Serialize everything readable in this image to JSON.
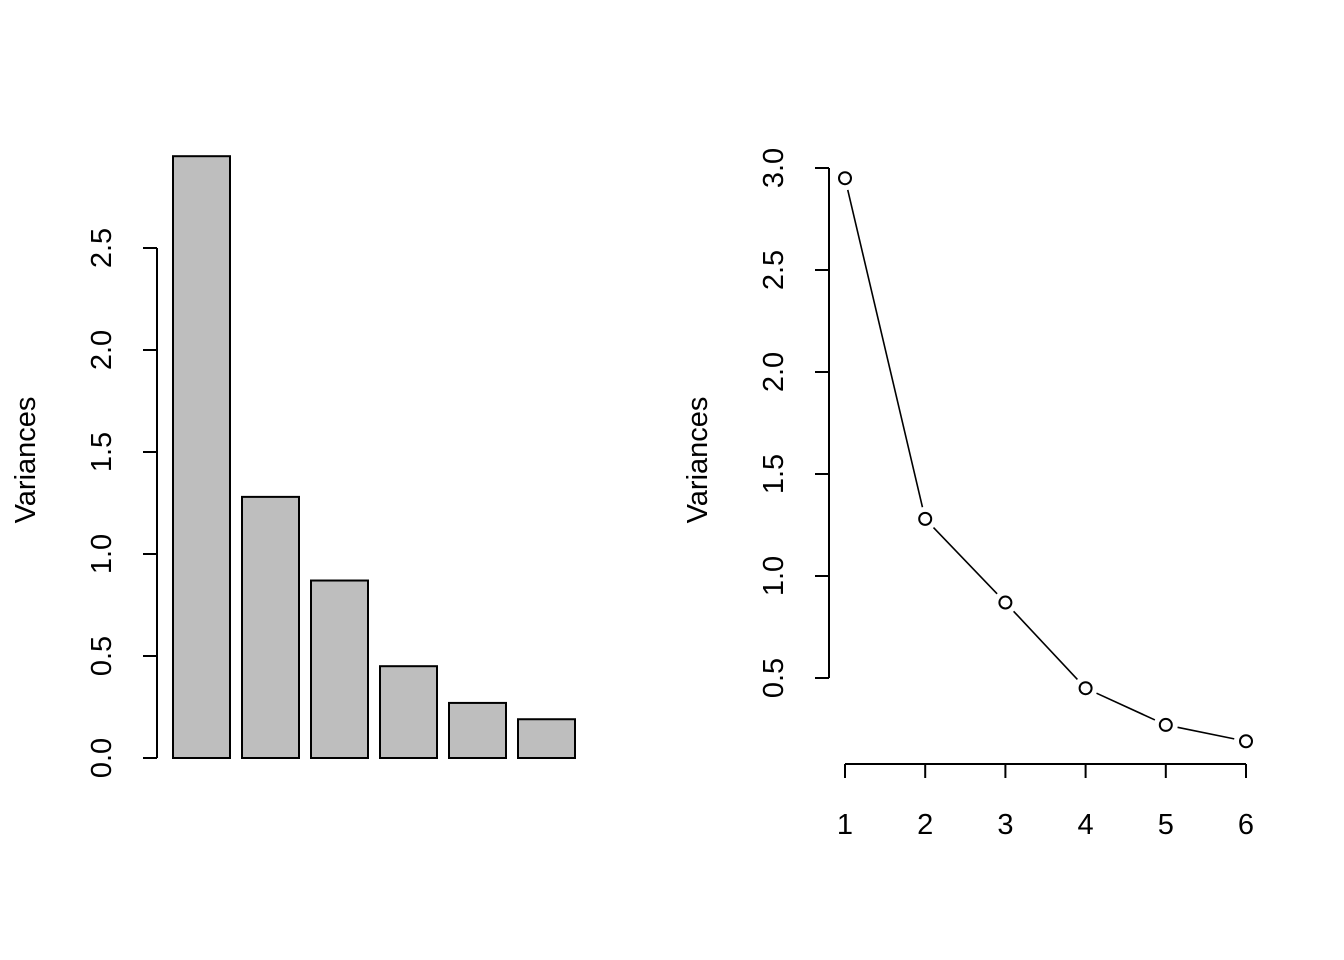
{
  "chart_data": [
    {
      "type": "bar",
      "categories": [
        "",
        "",
        "",
        "",
        "",
        ""
      ],
      "values": [
        2.95,
        1.28,
        0.87,
        0.45,
        0.27,
        0.19
      ],
      "ylabel": "Variances",
      "xlabel": "",
      "ylim": [
        0,
        2.95
      ],
      "yticks": [
        "0.0",
        "0.5",
        "1.0",
        "1.5",
        "2.0",
        "2.5"
      ],
      "grid": false,
      "bar_color": "#BEBEBE"
    },
    {
      "type": "line",
      "x": [
        1,
        2,
        3,
        4,
        5,
        6
      ],
      "values": [
        2.95,
        1.28,
        0.87,
        0.45,
        0.27,
        0.19
      ],
      "ylabel": "Variances",
      "xlabel": "",
      "xticks": [
        "1",
        "2",
        "3",
        "4",
        "5",
        "6"
      ],
      "yticks": [
        "0.5",
        "1.0",
        "1.5",
        "2.0",
        "2.5",
        "3.0"
      ],
      "grid": false,
      "marker": "open-circle"
    }
  ]
}
